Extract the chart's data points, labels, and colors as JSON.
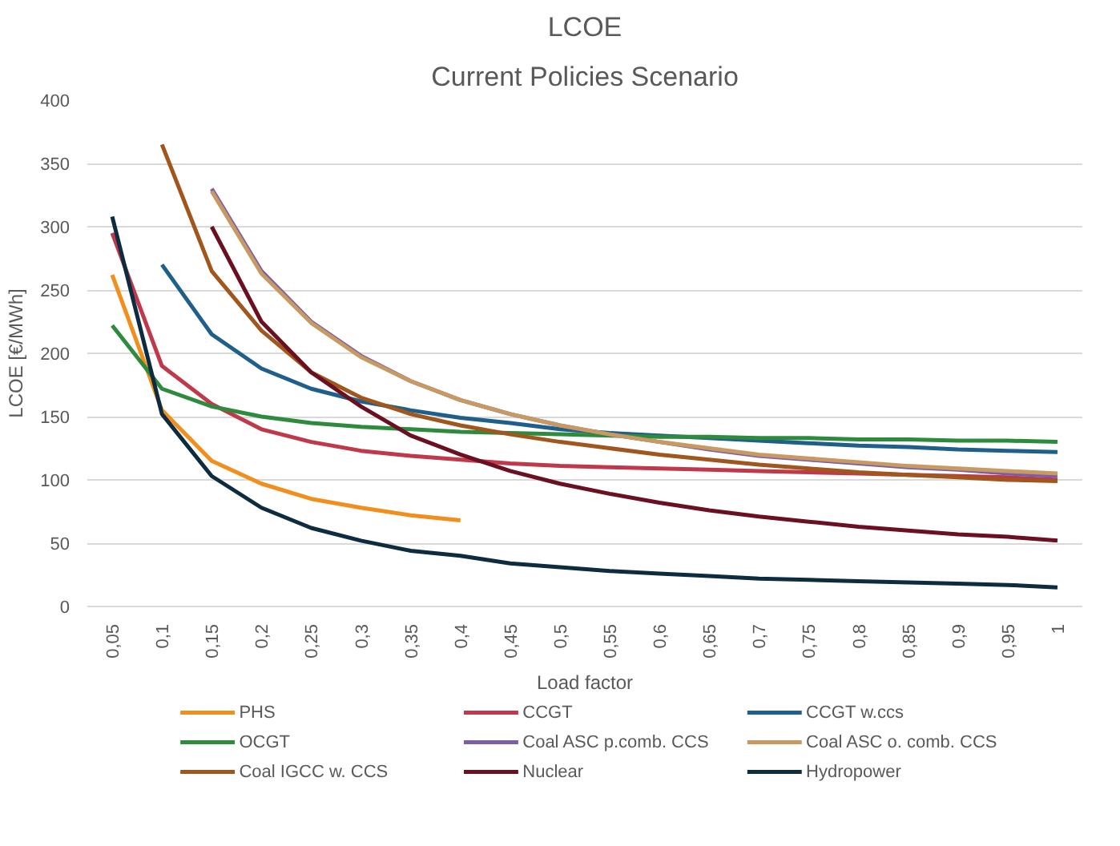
{
  "chart_data": {
    "type": "line",
    "title": "LCOE",
    "subtitle": "Current Policies Scenario",
    "xlabel": "Load factor",
    "ylabel": "LCOE [€/MWh]",
    "categories": [
      "0,05",
      "0,1",
      "0,15",
      "0,2",
      "0,25",
      "0,3",
      "0,35",
      "0,4",
      "0,45",
      "0,5",
      "0,55",
      "0,6",
      "0,65",
      "0,7",
      "0,75",
      "0,8",
      "0,85",
      "0,9",
      "0,95",
      "1"
    ],
    "ylim": [
      0,
      400
    ],
    "yticks": [
      0,
      50,
      100,
      150,
      200,
      250,
      300,
      350,
      400
    ],
    "grid": "y",
    "legend": "bottom",
    "line_style": "solid",
    "series": [
      {
        "name": "PHS",
        "color": "#f28e1c",
        "values": [
          262,
          155,
          115,
          97,
          85,
          78,
          72,
          68,
          null,
          null,
          null,
          null,
          null,
          null,
          null,
          null,
          null,
          null,
          null,
          null
        ]
      },
      {
        "name": "CCGT",
        "color": "#c0394b",
        "values": [
          295,
          190,
          160,
          140,
          130,
          123,
          119,
          116,
          113,
          111,
          110,
          109,
          108,
          107,
          106,
          105,
          104,
          103,
          102,
          100
        ]
      },
      {
        "name": "CCGT w.ccs",
        "color": "#1f5f8b",
        "values": [
          null,
          270,
          215,
          188,
          172,
          162,
          155,
          149,
          145,
          140,
          137,
          135,
          133,
          131,
          129,
          127,
          126,
          124,
          123,
          122
        ]
      },
      {
        "name": "OCGT",
        "color": "#2e8b3e",
        "values": [
          222,
          172,
          158,
          150,
          145,
          142,
          140,
          138,
          137,
          136,
          135,
          134,
          134,
          133,
          133,
          132,
          132,
          131,
          131,
          130
        ]
      },
      {
        "name": "Coal ASC p.comb. CCS",
        "color": "#7b5ea7",
        "values": [
          null,
          null,
          330,
          265,
          225,
          198,
          178,
          163,
          152,
          143,
          136,
          130,
          124,
          119,
          116,
          113,
          110,
          108,
          105,
          103
        ]
      },
      {
        "name": "Coal ASC o. comb. CCS",
        "color": "#c89a62",
        "values": [
          null,
          null,
          328,
          263,
          224,
          197,
          178,
          163,
          152,
          143,
          136,
          130,
          125,
          120,
          117,
          114,
          111,
          109,
          107,
          105
        ]
      },
      {
        "name": "Coal IGCC w. CCS",
        "color": "#a0561c",
        "values": [
          null,
          365,
          265,
          218,
          185,
          165,
          152,
          143,
          136,
          130,
          125,
          120,
          116,
          112,
          109,
          106,
          104,
          102,
          100,
          99
        ]
      },
      {
        "name": "Nuclear",
        "color": "#6b1020",
        "values": [
          null,
          null,
          300,
          225,
          185,
          158,
          135,
          120,
          107,
          97,
          89,
          82,
          76,
          71,
          67,
          63,
          60,
          57,
          55,
          52
        ]
      },
      {
        "name": "Hydropower",
        "color": "#0d2c40",
        "values": [
          308,
          152,
          103,
          78,
          62,
          52,
          44,
          40,
          34,
          31,
          28,
          26,
          24,
          22,
          21,
          20,
          19,
          18,
          17,
          15
        ]
      }
    ]
  }
}
